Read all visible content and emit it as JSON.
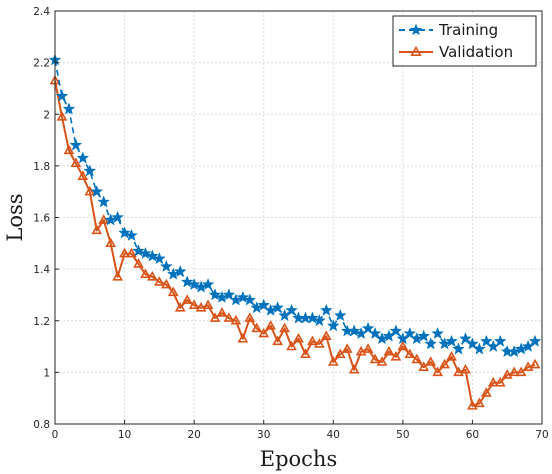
{
  "chart_data": {
    "type": "line",
    "title": "",
    "xlabel": "Epochs",
    "ylabel": "Loss",
    "xlim": [
      0,
      70
    ],
    "ylim": [
      0.8,
      2.4
    ],
    "x_ticks": [
      0,
      10,
      20,
      30,
      40,
      50,
      60,
      70
    ],
    "y_ticks": [
      0.8,
      1,
      1.2,
      1.4,
      1.6,
      1.8,
      2,
      2.2,
      2.4
    ],
    "y_tick_labels": [
      "0.8",
      "1",
      "1.2",
      "1.4",
      "1.6",
      "1.8",
      "2",
      "2.2",
      "2.4"
    ],
    "grid": true,
    "legend_position": "top-right",
    "series": [
      {
        "name": "Training",
        "color": "#0072BD",
        "line_style": "dashed",
        "marker": "star",
        "x": [
          0,
          1,
          2,
          3,
          4,
          5,
          6,
          7,
          8,
          9,
          10,
          11,
          12,
          13,
          14,
          15,
          16,
          17,
          18,
          19,
          20,
          21,
          22,
          23,
          24,
          25,
          26,
          27,
          28,
          29,
          30,
          31,
          32,
          33,
          34,
          35,
          36,
          37,
          38,
          39,
          40,
          41,
          42,
          43,
          44,
          45,
          46,
          47,
          48,
          49,
          50,
          51,
          52,
          53,
          54,
          55,
          56,
          57,
          58,
          59,
          60,
          61,
          62,
          63,
          64,
          65,
          66,
          67,
          68,
          69
        ],
        "values": [
          2.21,
          2.07,
          2.02,
          1.88,
          1.83,
          1.78,
          1.7,
          1.66,
          1.59,
          1.6,
          1.54,
          1.53,
          1.47,
          1.46,
          1.45,
          1.44,
          1.41,
          1.38,
          1.39,
          1.35,
          1.34,
          1.33,
          1.34,
          1.3,
          1.29,
          1.3,
          1.28,
          1.29,
          1.28,
          1.25,
          1.26,
          1.24,
          1.25,
          1.22,
          1.24,
          1.21,
          1.21,
          1.21,
          1.2,
          1.24,
          1.18,
          1.22,
          1.16,
          1.16,
          1.15,
          1.17,
          1.15,
          1.13,
          1.14,
          1.16,
          1.13,
          1.15,
          1.13,
          1.14,
          1.11,
          1.15,
          1.11,
          1.12,
          1.09,
          1.13,
          1.11,
          1.09,
          1.12,
          1.1,
          1.12,
          1.08,
          1.08,
          1.09,
          1.1,
          1.12
        ]
      },
      {
        "name": "Validation",
        "color": "#D95319",
        "line_style": "solid",
        "marker": "triangle",
        "x": [
          0,
          1,
          2,
          3,
          4,
          5,
          6,
          7,
          8,
          9,
          10,
          11,
          12,
          13,
          14,
          15,
          16,
          17,
          18,
          19,
          20,
          21,
          22,
          23,
          24,
          25,
          26,
          27,
          28,
          29,
          30,
          31,
          32,
          33,
          34,
          35,
          36,
          37,
          38,
          39,
          40,
          41,
          42,
          43,
          44,
          45,
          46,
          47,
          48,
          49,
          50,
          51,
          52,
          53,
          54,
          55,
          56,
          57,
          58,
          59,
          60,
          61,
          62,
          63,
          64,
          65,
          66,
          67,
          68,
          69
        ],
        "values": [
          2.13,
          1.99,
          1.86,
          1.81,
          1.76,
          1.7,
          1.55,
          1.59,
          1.5,
          1.37,
          1.46,
          1.46,
          1.42,
          1.38,
          1.37,
          1.35,
          1.34,
          1.31,
          1.25,
          1.28,
          1.26,
          1.25,
          1.26,
          1.21,
          1.23,
          1.21,
          1.2,
          1.13,
          1.21,
          1.17,
          1.15,
          1.18,
          1.12,
          1.17,
          1.1,
          1.13,
          1.07,
          1.12,
          1.11,
          1.14,
          1.04,
          1.07,
          1.09,
          1.01,
          1.08,
          1.09,
          1.05,
          1.04,
          1.08,
          1.06,
          1.1,
          1.07,
          1.05,
          1.02,
          1.04,
          1.0,
          1.03,
          1.06,
          1.0,
          1.01,
          0.87,
          0.88,
          0.92,
          0.96,
          0.96,
          0.99,
          1.0,
          1.0,
          1.02,
          1.03
        ]
      }
    ]
  }
}
